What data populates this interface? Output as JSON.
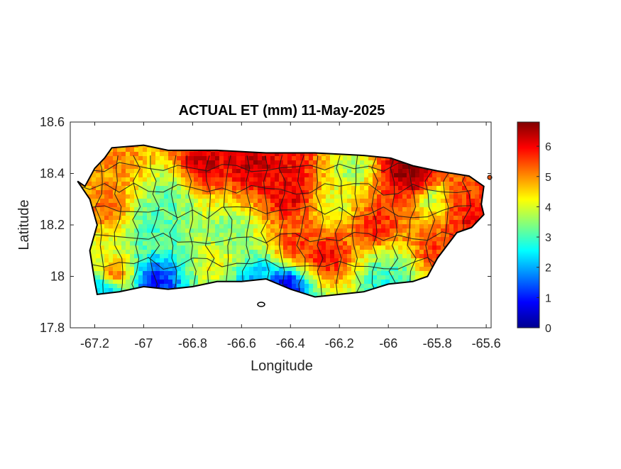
{
  "chart_data": {
    "type": "heatmap",
    "title": "ACTUAL ET (mm) 11-May-2025",
    "xlabel": "Longitude",
    "ylabel": "Latitude",
    "xlim": [
      -67.3,
      -65.58
    ],
    "ylim": [
      17.8,
      18.6
    ],
    "x_ticks": [
      -67.2,
      -67,
      -66.8,
      -66.6,
      -66.4,
      -66.2,
      -66,
      -65.8,
      -65.6
    ],
    "x_tick_labels": [
      "-67.2",
      "-67",
      "-66.8",
      "-66.6",
      "-66.4",
      "-66.2",
      "-66",
      "-65.8",
      "-65.6"
    ],
    "y_ticks": [
      17.8,
      18,
      18.2,
      18.4,
      18.6
    ],
    "y_tick_labels": [
      "17.8",
      "18",
      "18.2",
      "18.4",
      "18.6"
    ],
    "colorbar": {
      "colormap": "jet",
      "range": [
        0,
        6.8
      ],
      "ticks": [
        0,
        1,
        2,
        3,
        4,
        5,
        6
      ],
      "tick_labels": [
        "0",
        "1",
        "2",
        "3",
        "4",
        "5",
        "6"
      ]
    },
    "grid": false,
    "outline": [
      [
        -67.27,
        18.37
      ],
      [
        -67.24,
        18.35
      ],
      [
        -67.2,
        18.42
      ],
      [
        -67.16,
        18.46
      ],
      [
        -67.13,
        18.5
      ],
      [
        -67.0,
        18.51
      ],
      [
        -66.9,
        18.49
      ],
      [
        -66.7,
        18.49
      ],
      [
        -66.5,
        18.48
      ],
      [
        -66.3,
        18.48
      ],
      [
        -66.1,
        18.47
      ],
      [
        -65.99,
        18.46
      ],
      [
        -65.9,
        18.43
      ],
      [
        -65.8,
        18.41
      ],
      [
        -65.67,
        18.39
      ],
      [
        -65.61,
        18.35
      ],
      [
        -65.62,
        18.28
      ],
      [
        -65.61,
        18.24
      ],
      [
        -65.66,
        18.19
      ],
      [
        -65.72,
        18.17
      ],
      [
        -65.76,
        18.12
      ],
      [
        -65.8,
        18.07
      ],
      [
        -65.84,
        18.0
      ],
      [
        -65.9,
        17.98
      ],
      [
        -66.0,
        17.97
      ],
      [
        -66.1,
        17.94
      ],
      [
        -66.2,
        17.93
      ],
      [
        -66.3,
        17.92
      ],
      [
        -66.4,
        17.95
      ],
      [
        -66.5,
        17.99
      ],
      [
        -66.6,
        17.98
      ],
      [
        -66.7,
        17.98
      ],
      [
        -66.8,
        17.96
      ],
      [
        -66.9,
        17.95
      ],
      [
        -67.0,
        17.96
      ],
      [
        -67.1,
        17.94
      ],
      [
        -67.19,
        17.93
      ],
      [
        -67.2,
        17.98
      ],
      [
        -67.22,
        18.1
      ],
      [
        -67.19,
        18.2
      ],
      [
        -67.22,
        18.3
      ],
      [
        -67.27,
        18.37
      ]
    ],
    "hotspots": [
      {
        "lon": -66.75,
        "lat": 18.44,
        "value": 6.3
      },
      {
        "lon": -66.55,
        "lat": 18.44,
        "value": 6.4
      },
      {
        "lon": -66.42,
        "lat": 18.44,
        "value": 6.0
      },
      {
        "lon": -66.4,
        "lat": 18.32,
        "value": 6.2
      },
      {
        "lon": -66.25,
        "lat": 18.08,
        "value": 6.0
      },
      {
        "lon": -66.38,
        "lat": 18.12,
        "value": 5.6
      },
      {
        "lon": -65.93,
        "lat": 18.42,
        "value": 6.8
      },
      {
        "lon": -65.88,
        "lat": 18.38,
        "value": 6.5
      },
      {
        "lon": -66.05,
        "lat": 18.2,
        "value": 5.8
      },
      {
        "lon": -65.72,
        "lat": 18.3,
        "value": 5.6
      },
      {
        "lon": -65.65,
        "lat": 18.22,
        "value": 6.0
      },
      {
        "lon": -65.8,
        "lat": 18.1,
        "value": 5.6
      },
      {
        "lon": -67.15,
        "lat": 18.28,
        "value": 5.2
      },
      {
        "lon": -67.12,
        "lat": 18.0,
        "value": 5.3
      },
      {
        "lon": -67.1,
        "lat": 18.45,
        "value": 5.0
      },
      {
        "lon": -66.9,
        "lat": 18.3,
        "value": 3.2
      },
      {
        "lon": -66.95,
        "lat": 18.2,
        "value": 3.0
      },
      {
        "lon": -66.65,
        "lat": 18.18,
        "value": 3.4
      },
      {
        "lon": -66.15,
        "lat": 18.42,
        "value": 3.6
      },
      {
        "lon": -66.22,
        "lat": 18.28,
        "value": 4.0
      },
      {
        "lon": -65.82,
        "lat": 18.3,
        "value": 3.6
      },
      {
        "lon": -66.0,
        "lat": 18.0,
        "value": 3.4
      },
      {
        "lon": -66.7,
        "lat": 18.05,
        "value": 4.2
      },
      {
        "lon": -66.95,
        "lat": 17.98,
        "value": 1.0
      },
      {
        "lon": -66.42,
        "lat": 17.96,
        "value": 0.8
      },
      {
        "lon": -67.15,
        "lat": 17.95,
        "value": 1.8
      },
      {
        "lon": -66.55,
        "lat": 17.98,
        "value": 2.0
      },
      {
        "lon": -66.0,
        "lat": 17.98,
        "value": 2.2
      }
    ]
  }
}
